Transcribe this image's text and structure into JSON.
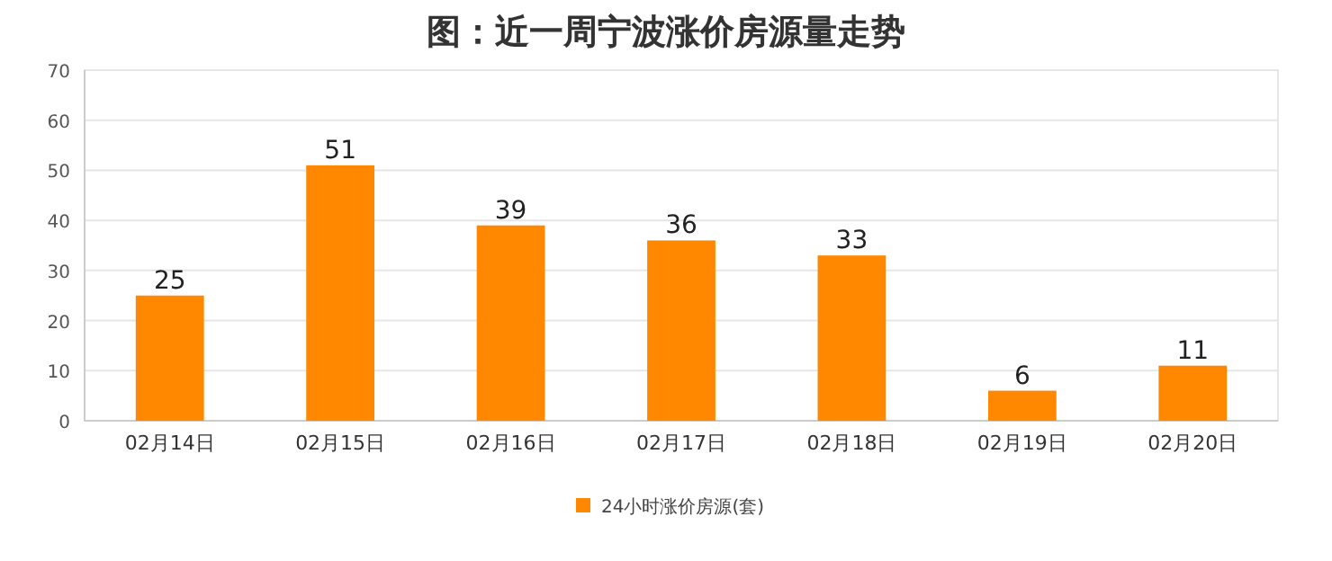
{
  "chart_data": {
    "type": "bar",
    "title": "图：近一周宁波涨价房源量走势",
    "categories": [
      "02月14日",
      "02月15日",
      "02月16日",
      "02月17日",
      "02月18日",
      "02月19日",
      "02月20日"
    ],
    "series": [
      {
        "name": "24小时涨价房源(套)",
        "color": "#ff8800",
        "values": [
          25,
          51,
          39,
          36,
          33,
          6,
          11
        ]
      }
    ],
    "ylim": [
      0,
      70
    ],
    "yticks": [
      0,
      10,
      20,
      30,
      40,
      50,
      60,
      70
    ],
    "grid": "y",
    "legend": "bottom",
    "data_labels": true
  }
}
